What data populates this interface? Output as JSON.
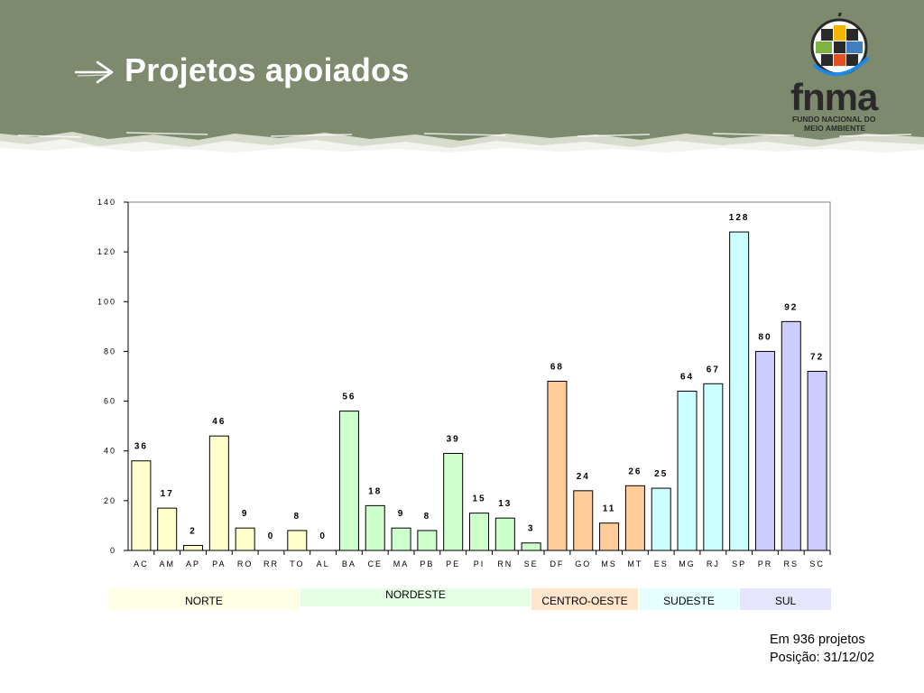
{
  "title": "Projetos apoiados",
  "logo": {
    "name": "fnma",
    "subtitle_line1": "FUNDO NACIONAL DO",
    "subtitle_line2": "MEIO AMBIENTE"
  },
  "colors": {
    "header": "#7d8a6d",
    "norte": "#ffffcc",
    "nordeste": "#ccffcc",
    "centro_oeste": "#ffcc99",
    "sudeste": "#ccffff",
    "sul": "#ccccff",
    "norte_band": "#ffffe5",
    "nordeste_band": "#e5ffe5",
    "centro_oeste_band": "#ffe5cc",
    "sudeste_band": "#e5ffff",
    "sul_band": "#e5e5ff"
  },
  "chart_data": {
    "type": "bar",
    "categories": [
      "AC",
      "AM",
      "AP",
      "PA",
      "RO",
      "RR",
      "TO",
      "AL",
      "BA",
      "CE",
      "MA",
      "PB",
      "PE",
      "PI",
      "RN",
      "SE",
      "DF",
      "GO",
      "MS",
      "MT",
      "ES",
      "MG",
      "RJ",
      "SP",
      "PR",
      "RS",
      "SC"
    ],
    "values": [
      36,
      17,
      2,
      46,
      9,
      0,
      8,
      0,
      56,
      18,
      9,
      8,
      39,
      15,
      13,
      3,
      68,
      24,
      11,
      26,
      25,
      64,
      67,
      128,
      80,
      92,
      72
    ],
    "region_of_category": [
      "norte",
      "norte",
      "norte",
      "norte",
      "norte",
      "norte",
      "norte",
      "nordeste",
      "nordeste",
      "nordeste",
      "nordeste",
      "nordeste",
      "nordeste",
      "nordeste",
      "nordeste",
      "nordeste",
      "centro_oeste",
      "centro_oeste",
      "centro_oeste",
      "centro_oeste",
      "sudeste",
      "sudeste",
      "sudeste",
      "sudeste",
      "sul",
      "sul",
      "sul"
    ],
    "ylim": [
      0,
      140
    ],
    "yticks": [
      0,
      20,
      40,
      60,
      80,
      100,
      120,
      140
    ],
    "xlabel": "",
    "ylabel": "",
    "grid": false,
    "data_labels": true
  },
  "regions": [
    {
      "key": "norte",
      "label": "NORTE"
    },
    {
      "key": "nordeste",
      "label": "NORDESTE"
    },
    {
      "key": "centro_oeste",
      "label": "CENTRO-OESTE"
    },
    {
      "key": "sudeste",
      "label": "SUDESTE"
    },
    {
      "key": "sul",
      "label": "SUL"
    }
  ],
  "note": {
    "line1": "Em 936 projetos",
    "line2": "Posição: 31/12/02"
  }
}
